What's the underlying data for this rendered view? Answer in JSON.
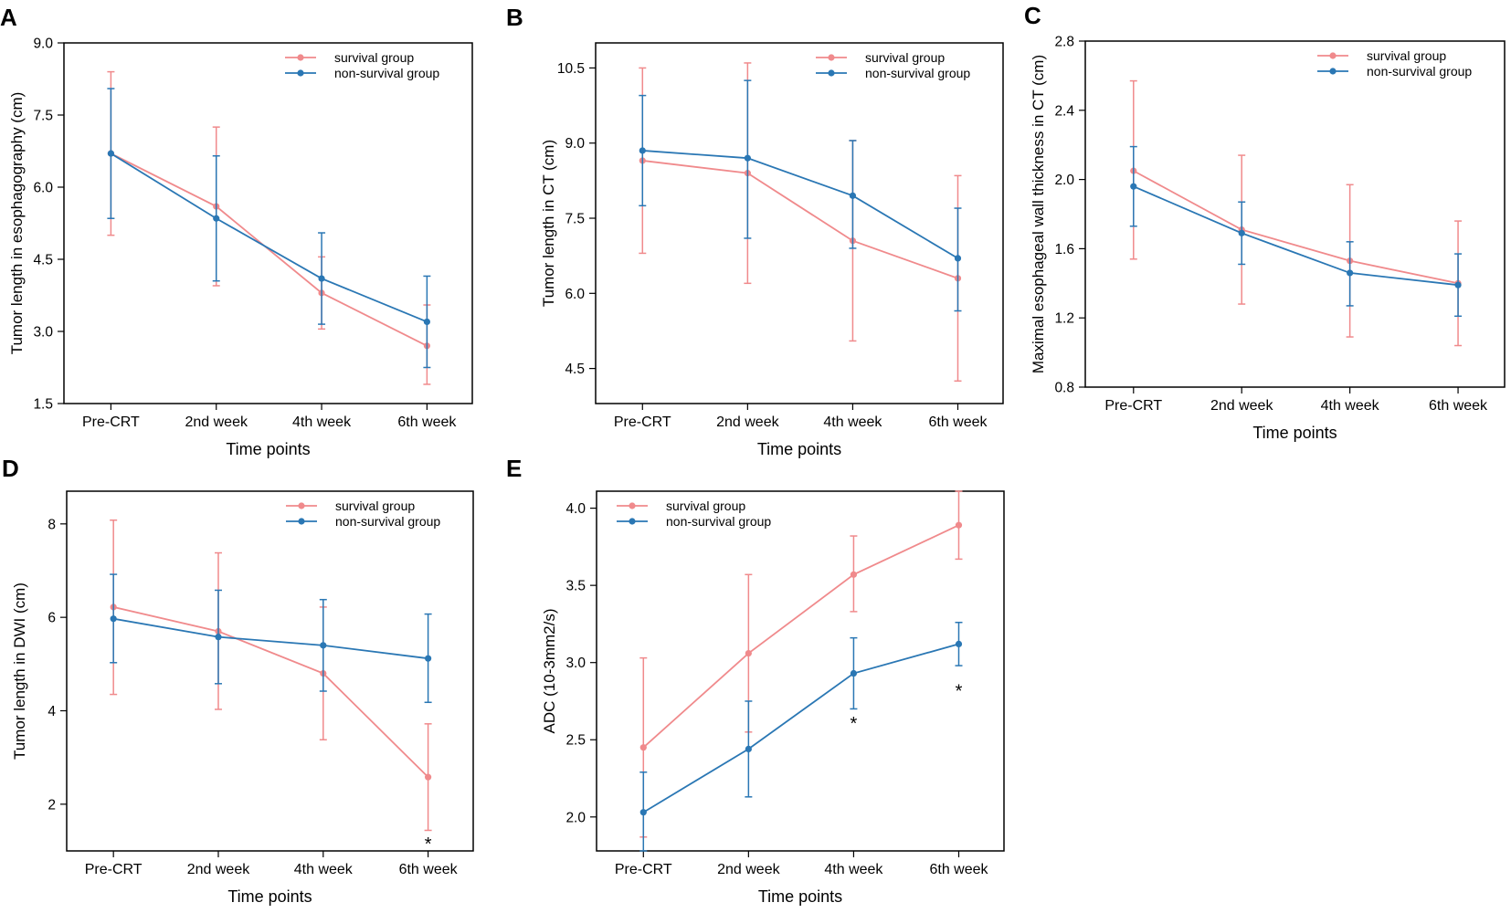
{
  "colors": {
    "survival": "#F08A8C",
    "nonsurvival": "#2A77B4",
    "axis": "#000000"
  },
  "chart_data": [
    {
      "panel": "A",
      "type": "line",
      "categories": [
        "Pre-CRT",
        "2nd week",
        "4th week",
        "6th week"
      ],
      "xlabel": "Time points",
      "ylabel": "Tumor length in esophagography (cm)",
      "ylim": [
        1.5,
        9.0
      ],
      "yticks": [
        {
          "v": 1.5,
          "label": "1.5"
        },
        {
          "v": 3.0,
          "label": "3.0"
        },
        {
          "v": 4.5,
          "label": "4.5"
        },
        {
          "v": 6.0,
          "label": "6.0"
        },
        {
          "v": 7.5,
          "label": "7.5"
        },
        {
          "v": 9.0,
          "label": "9.0"
        }
      ],
      "legend": {
        "position": "top-right"
      },
      "series": [
        {
          "name": "survival group",
          "key": "survival",
          "values": [
            6.7,
            5.6,
            3.8,
            2.7
          ],
          "lower": [
            5.0,
            3.95,
            3.05,
            1.9
          ],
          "upper": [
            8.4,
            7.25,
            4.55,
            3.55
          ]
        },
        {
          "name": "non-survival group",
          "key": "nonsurvival",
          "values": [
            6.7,
            5.35,
            4.1,
            3.2
          ],
          "lower": [
            5.35,
            4.05,
            3.15,
            2.25
          ],
          "upper": [
            8.05,
            6.65,
            5.05,
            4.15
          ]
        }
      ],
      "annotations": []
    },
    {
      "panel": "B",
      "type": "line",
      "categories": [
        "Pre-CRT",
        "2nd week",
        "4th week",
        "6th week"
      ],
      "xlabel": "Time points",
      "ylabel": "Tumor length in CT (cm)",
      "ylim": [
        3.8,
        11.0
      ],
      "yticks": [
        {
          "v": 4.5,
          "label": "4.5"
        },
        {
          "v": 6.0,
          "label": "6.0"
        },
        {
          "v": 7.5,
          "label": "7.5"
        },
        {
          "v": 9.0,
          "label": "9.0"
        },
        {
          "v": 10.5,
          "label": "10.5"
        }
      ],
      "legend": {
        "position": "top-right"
      },
      "series": [
        {
          "name": "survival group",
          "key": "survival",
          "values": [
            8.65,
            8.4,
            7.05,
            6.3
          ],
          "lower": [
            6.8,
            6.2,
            5.05,
            4.25
          ],
          "upper": [
            10.5,
            10.6,
            9.05,
            8.35
          ]
        },
        {
          "name": "non-survival group",
          "key": "nonsurvival",
          "values": [
            8.85,
            8.7,
            7.95,
            6.7
          ],
          "lower": [
            7.75,
            7.1,
            6.9,
            5.65
          ],
          "upper": [
            9.95,
            10.25,
            9.05,
            7.7
          ]
        }
      ],
      "annotations": []
    },
    {
      "panel": "C",
      "type": "line",
      "categories": [
        "Pre-CRT",
        "2nd week",
        "4th week",
        "6th week"
      ],
      "xlabel": "Time points",
      "ylabel": "Maximal esophageal wall thickness in CT (cm)",
      "ylim": [
        0.8,
        2.8
      ],
      "yticks": [
        {
          "v": 0.8,
          "label": "0.8"
        },
        {
          "v": 1.2,
          "label": "1.2"
        },
        {
          "v": 1.6,
          "label": "1.6"
        },
        {
          "v": 2.0,
          "label": "2.0"
        },
        {
          "v": 2.4,
          "label": "2.4"
        },
        {
          "v": 2.8,
          "label": "2.8"
        }
      ],
      "legend": {
        "position": "top-right"
      },
      "series": [
        {
          "name": "survival group",
          "key": "survival",
          "values": [
            2.05,
            1.71,
            1.53,
            1.4
          ],
          "lower": [
            1.54,
            1.28,
            1.09,
            1.04
          ],
          "upper": [
            2.57,
            2.14,
            1.97,
            1.76
          ]
        },
        {
          "name": "non-survival group",
          "key": "nonsurvival",
          "values": [
            1.96,
            1.69,
            1.46,
            1.39
          ],
          "lower": [
            1.73,
            1.51,
            1.27,
            1.21
          ],
          "upper": [
            2.19,
            1.87,
            1.64,
            1.57
          ]
        }
      ],
      "annotations": []
    },
    {
      "panel": "D",
      "type": "line",
      "categories": [
        "Pre-CRT",
        "2nd week",
        "4th week",
        "6th week"
      ],
      "xlabel": "Time points",
      "ylabel": "Tumor length in DWI (cm)",
      "ylim": [
        1.0,
        8.7
      ],
      "yticks": [
        {
          "v": 2,
          "label": "2"
        },
        {
          "v": 4,
          "label": "4"
        },
        {
          "v": 6,
          "label": "6"
        },
        {
          "v": 8,
          "label": "8"
        }
      ],
      "legend": {
        "position": "top-right"
      },
      "series": [
        {
          "name": "survival group",
          "key": "survival",
          "values": [
            6.22,
            5.7,
            4.8,
            2.58
          ],
          "lower": [
            4.35,
            4.03,
            3.38,
            1.44
          ],
          "upper": [
            8.08,
            7.38,
            6.22,
            3.72
          ]
        },
        {
          "name": "non-survival group",
          "key": "nonsurvival",
          "values": [
            5.97,
            5.58,
            5.4,
            5.12
          ],
          "lower": [
            5.03,
            4.58,
            4.42,
            4.18
          ],
          "upper": [
            6.92,
            6.58,
            6.38,
            6.07
          ]
        }
      ],
      "annotations": [
        {
          "text": "*",
          "category_index": 3,
          "y": 1.2
        }
      ]
    },
    {
      "panel": "E",
      "type": "line",
      "categories": [
        "Pre-CRT",
        "2nd week",
        "4th week",
        "6th week"
      ],
      "xlabel": "Time points",
      "ylabel": "ADC (10-3mm2/s)",
      "ylim": [
        1.78,
        4.11
      ],
      "yticks": [
        {
          "v": 2.0,
          "label": "2.0"
        },
        {
          "v": 2.5,
          "label": "2.5"
        },
        {
          "v": 3.0,
          "label": "3.0"
        },
        {
          "v": 3.5,
          "label": "3.5"
        },
        {
          "v": 4.0,
          "label": "4.0"
        }
      ],
      "legend": {
        "position": "top-left"
      },
      "series": [
        {
          "name": "survival group",
          "key": "survival",
          "values": [
            2.45,
            3.06,
            3.57,
            3.89
          ],
          "lower": [
            1.87,
            2.55,
            3.33,
            3.67
          ],
          "upper": [
            3.03,
            3.57,
            3.82,
            4.11
          ]
        },
        {
          "name": "non-survival group",
          "key": "nonsurvival",
          "values": [
            2.03,
            2.44,
            2.93,
            3.12
          ],
          "lower": [
            1.78,
            2.13,
            2.7,
            2.98
          ],
          "upper": [
            2.29,
            2.75,
            3.16,
            3.26
          ]
        }
      ],
      "annotations": [
        {
          "text": "*",
          "category_index": 2,
          "y": 2.62
        },
        {
          "text": "*",
          "category_index": 3,
          "y": 2.83
        }
      ]
    }
  ]
}
